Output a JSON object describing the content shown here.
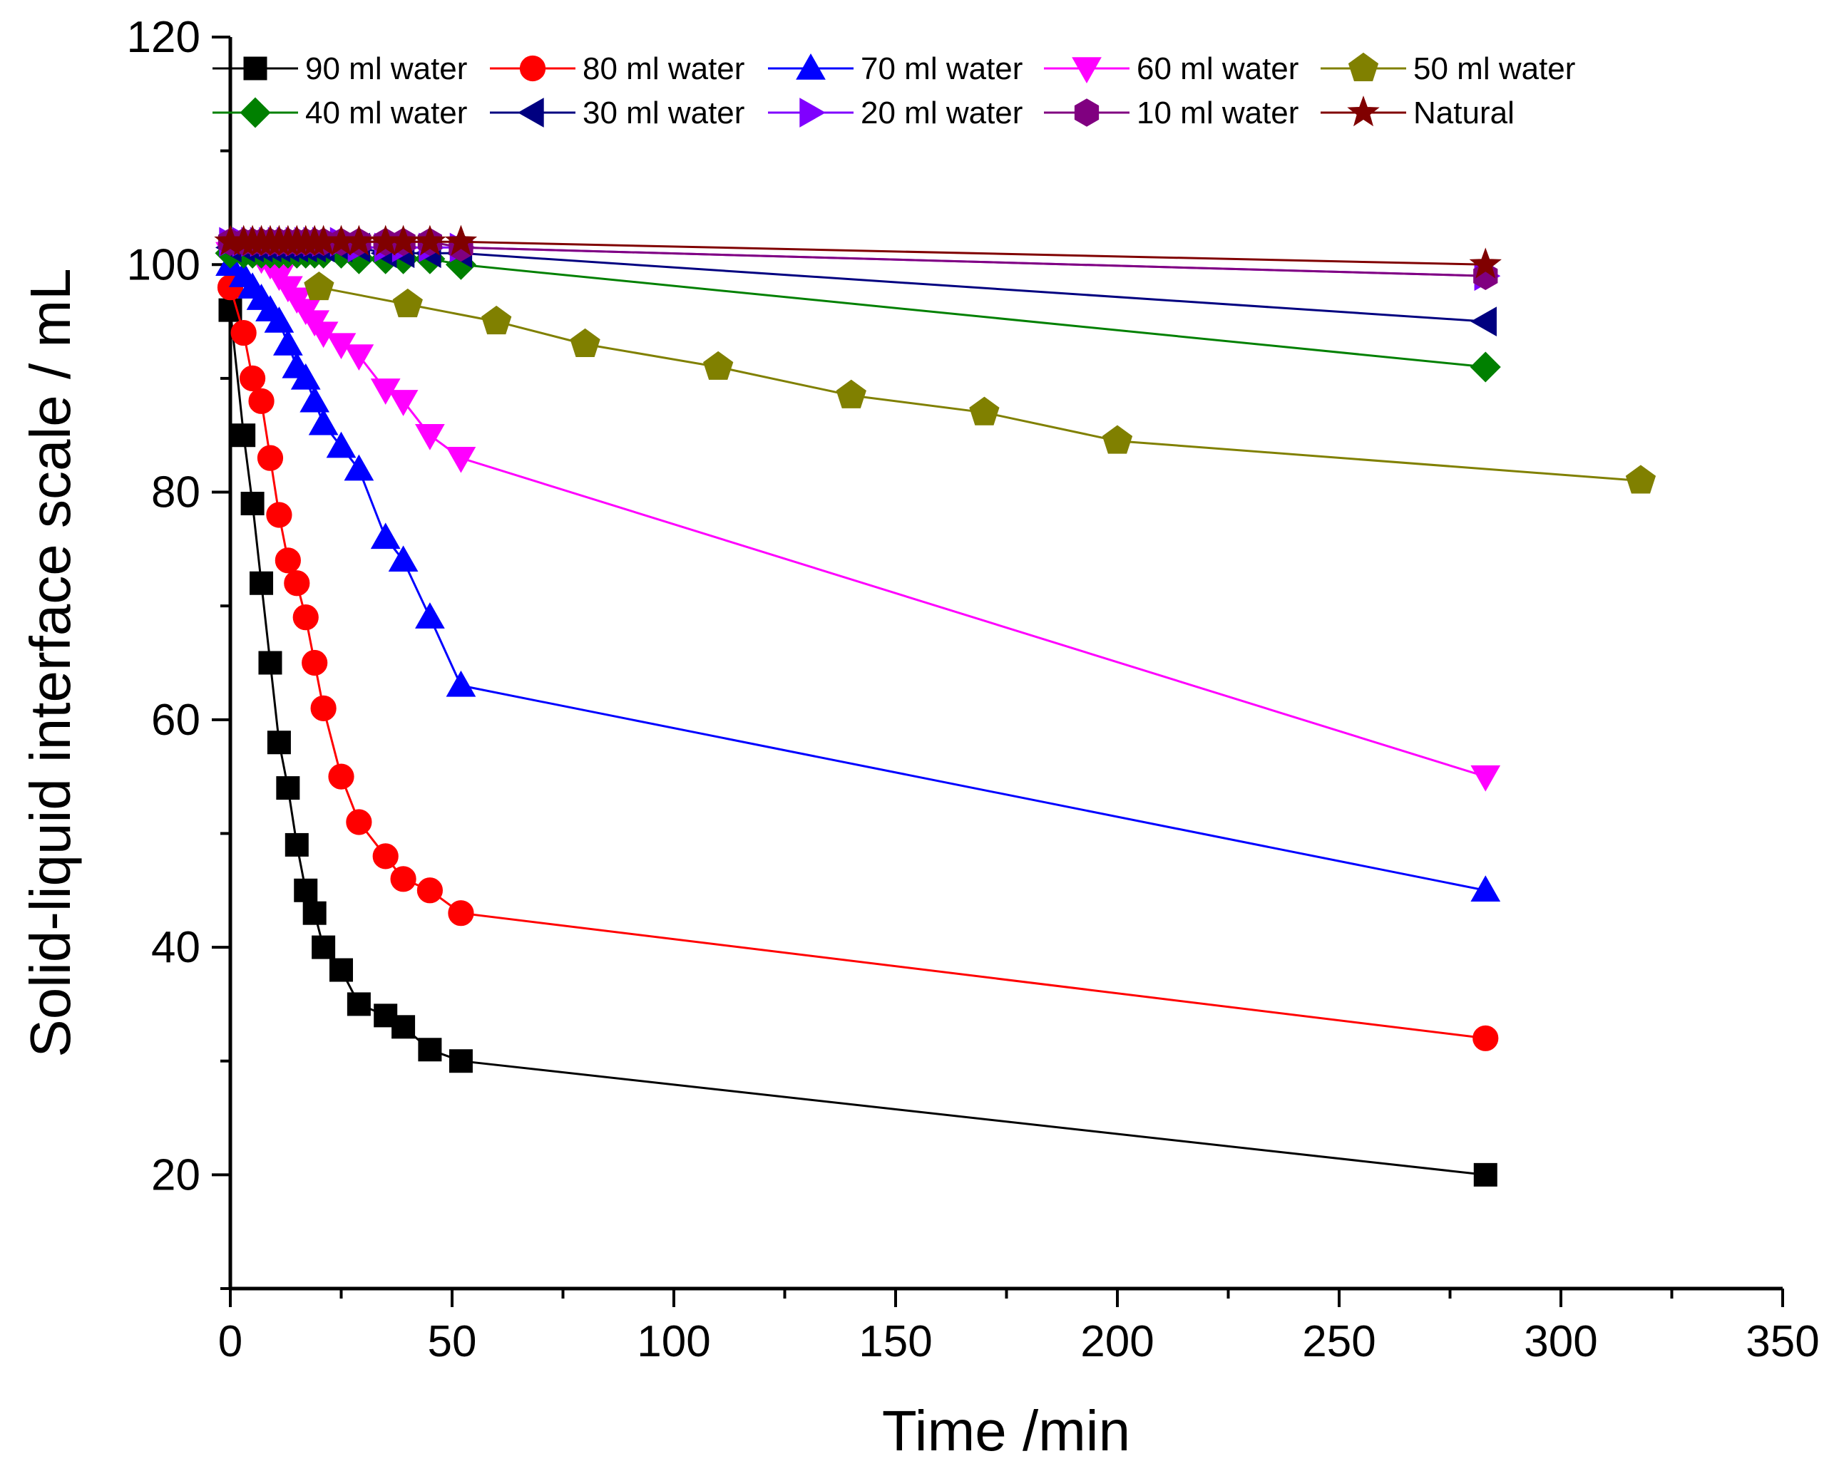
{
  "chart_data": {
    "type": "line",
    "title": "",
    "xlabel": "Time /min",
    "ylabel": "Solid-liquid interface scale / mL",
    "xlim": [
      0,
      350
    ],
    "ylim": [
      10,
      120
    ],
    "xticks": [
      0,
      50,
      100,
      150,
      200,
      250,
      300,
      350
    ],
    "xtick_labels": [
      "0",
      "50",
      "100",
      "150",
      "200",
      "250",
      "300",
      "350"
    ],
    "yticks": [
      20,
      40,
      60,
      80,
      100,
      120
    ],
    "ytick_labels": [
      "20",
      "40",
      "60",
      "80",
      "100",
      "120"
    ],
    "grid": false,
    "legend_position": "top",
    "series": [
      {
        "name": "90 ml water",
        "color": "#000000",
        "marker": "square",
        "x": [
          0,
          3,
          5,
          7,
          9,
          11,
          13,
          15,
          17,
          19,
          21,
          25,
          29,
          35,
          39,
          45,
          52,
          283
        ],
        "y": [
          96,
          85,
          79,
          72,
          65,
          58,
          54,
          49,
          45,
          43,
          40,
          38,
          35,
          34,
          33,
          31,
          30,
          20
        ]
      },
      {
        "name": "80 ml water",
        "color": "#ff0000",
        "marker": "circle",
        "x": [
          0,
          3,
          5,
          7,
          9,
          11,
          13,
          15,
          17,
          19,
          21,
          25,
          29,
          35,
          39,
          45,
          52,
          283
        ],
        "y": [
          98,
          94,
          90,
          88,
          83,
          78,
          74,
          72,
          69,
          65,
          61,
          55,
          51,
          48,
          46,
          45,
          43,
          32
        ]
      },
      {
        "name": "70 ml water",
        "color": "#0000ff",
        "marker": "triangle-up",
        "x": [
          0,
          3,
          5,
          7,
          9,
          11,
          13,
          15,
          17,
          19,
          21,
          25,
          29,
          35,
          39,
          45,
          52,
          283
        ],
        "y": [
          100,
          99,
          98,
          97,
          96,
          95,
          93,
          91,
          90,
          88,
          86,
          84,
          82,
          76,
          74,
          69,
          63,
          45
        ]
      },
      {
        "name": "60 ml water",
        "color": "#ff00ff",
        "marker": "triangle-down",
        "x": [
          0,
          3,
          5,
          7,
          9,
          11,
          13,
          15,
          17,
          19,
          21,
          25,
          29,
          35,
          39,
          45,
          52,
          283
        ],
        "y": [
          101,
          101,
          101,
          100.5,
          100,
          99,
          98,
          97,
          96,
          95,
          94,
          93,
          92,
          89,
          88,
          85,
          83,
          55
        ]
      },
      {
        "name": "50 ml water",
        "color": "#808000",
        "marker": "pentagon",
        "x": [
          20,
          40,
          60,
          80,
          110,
          140,
          170,
          200,
          318
        ],
        "y": [
          98,
          96.5,
          95,
          93,
          91,
          88.5,
          87,
          84.5,
          81
        ]
      },
      {
        "name": "40 ml water",
        "color": "#008000",
        "marker": "diamond",
        "x": [
          0,
          3,
          5,
          7,
          9,
          11,
          13,
          15,
          17,
          19,
          21,
          25,
          29,
          35,
          39,
          45,
          52,
          283
        ],
        "y": [
          101,
          101,
          101,
          101,
          101,
          101,
          101,
          101,
          101,
          101,
          101,
          101,
          100.5,
          100.5,
          100.5,
          100.5,
          100,
          91
        ]
      },
      {
        "name": "30 ml water",
        "color": "#000080",
        "marker": "triangle-left",
        "x": [
          0,
          3,
          5,
          7,
          9,
          11,
          13,
          15,
          17,
          19,
          21,
          25,
          29,
          35,
          39,
          45,
          52,
          283
        ],
        "y": [
          101.5,
          101.5,
          101.5,
          101.5,
          101.5,
          101.5,
          101.5,
          101.5,
          101.5,
          101.5,
          101.5,
          101.5,
          101.5,
          101,
          101,
          101,
          101,
          95
        ]
      },
      {
        "name": "20 ml water",
        "color": "#8000ff",
        "marker": "triangle-right",
        "x": [
          0,
          3,
          5,
          7,
          9,
          11,
          13,
          15,
          17,
          19,
          21,
          25,
          29,
          35,
          39,
          45,
          52,
          283
        ],
        "y": [
          102,
          102,
          102,
          102,
          102,
          102,
          102,
          102,
          102,
          102,
          102,
          102,
          101.5,
          101.5,
          101.5,
          101.5,
          101.5,
          99
        ]
      },
      {
        "name": "10 ml water",
        "color": "#800080",
        "marker": "hexagon",
        "x": [
          0,
          3,
          5,
          7,
          9,
          11,
          13,
          15,
          17,
          19,
          21,
          25,
          29,
          35,
          39,
          45,
          52,
          283
        ],
        "y": [
          102,
          102,
          102,
          102,
          102,
          102,
          102,
          102,
          102,
          102,
          102,
          102,
          102,
          102,
          102,
          102,
          101.5,
          99
        ]
      },
      {
        "name": "Natural",
        "color": "#800000",
        "marker": "star",
        "x": [
          0,
          3,
          5,
          7,
          9,
          11,
          13,
          15,
          17,
          19,
          21,
          25,
          29,
          35,
          39,
          45,
          52,
          283
        ],
        "y": [
          102,
          102,
          102,
          102,
          102,
          102,
          102,
          102,
          102,
          102,
          102,
          102,
          102,
          102,
          102,
          102,
          102,
          100
        ]
      }
    ]
  }
}
